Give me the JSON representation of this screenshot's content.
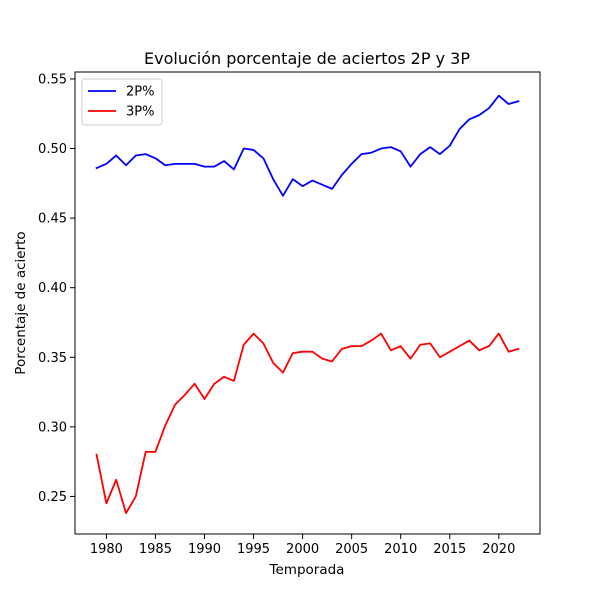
{
  "chart_data": {
    "type": "line",
    "title": "Evolución porcentaje de aciertos 2P y 3P",
    "xlabel": "Temporada",
    "ylabel": "Porcentaje de acierto",
    "xlim": [
      1976.8,
      2024.2
    ],
    "ylim": [
      0.223,
      0.555
    ],
    "x_ticks": [
      1980,
      1985,
      1990,
      1995,
      2000,
      2005,
      2010,
      2015,
      2020
    ],
    "y_ticks": [
      0.25,
      0.3,
      0.35,
      0.4,
      0.45,
      0.5,
      0.55
    ],
    "y_tick_labels": [
      "0.25",
      "0.30",
      "0.35",
      "0.40",
      "0.45",
      "0.50",
      "0.55"
    ],
    "grid": false,
    "legend_position": "upper-left",
    "x": [
      1979,
      1980,
      1981,
      1982,
      1983,
      1984,
      1985,
      1986,
      1987,
      1988,
      1989,
      1990,
      1991,
      1992,
      1993,
      1994,
      1995,
      1996,
      1997,
      1998,
      1999,
      2000,
      2001,
      2002,
      2003,
      2004,
      2005,
      2006,
      2007,
      2008,
      2009,
      2010,
      2011,
      2012,
      2013,
      2014,
      2015,
      2016,
      2017,
      2018,
      2019,
      2020,
      2021,
      2022
    ],
    "series": [
      {
        "name": "2P%",
        "color": "#0000ff",
        "values": [
          0.486,
          0.489,
          0.495,
          0.488,
          0.495,
          0.496,
          0.493,
          0.488,
          0.489,
          0.489,
          0.489,
          0.487,
          0.487,
          0.491,
          0.485,
          0.5,
          0.499,
          0.493,
          0.478,
          0.466,
          0.478,
          0.473,
          0.477,
          0.474,
          0.471,
          0.481,
          0.489,
          0.496,
          0.497,
          0.5,
          0.501,
          0.498,
          0.487,
          0.496,
          0.501,
          0.496,
          0.502,
          0.514,
          0.521,
          0.524,
          0.529,
          0.538,
          0.532,
          0.534
        ]
      },
      {
        "name": "3P%",
        "color": "#ff0000",
        "values": [
          0.28,
          0.245,
          0.262,
          0.238,
          0.25,
          0.282,
          0.282,
          0.301,
          0.316,
          0.323,
          0.331,
          0.32,
          0.331,
          0.336,
          0.333,
          0.359,
          0.367,
          0.36,
          0.346,
          0.339,
          0.353,
          0.354,
          0.354,
          0.349,
          0.347,
          0.356,
          0.358,
          0.358,
          0.362,
          0.367,
          0.355,
          0.358,
          0.349,
          0.359,
          0.36,
          0.35,
          0.354,
          0.358,
          0.362,
          0.355,
          0.358,
          0.367,
          0.354,
          0.356
        ]
      }
    ]
  }
}
